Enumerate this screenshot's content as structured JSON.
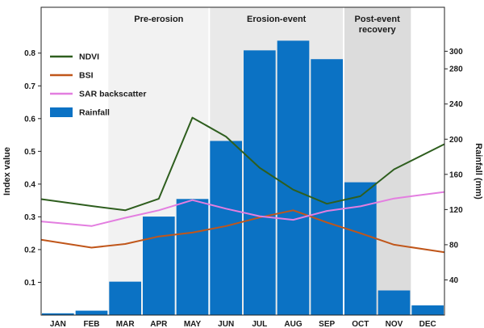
{
  "chart_data": {
    "type": "bar+line",
    "categories": [
      "JAN",
      "FEB",
      "MAR",
      "APR",
      "MAY",
      "JUN",
      "JUL",
      "AUG",
      "SEP",
      "OCT",
      "NOV",
      "DEC"
    ],
    "bar_series": {
      "name": "Rainfall",
      "axis": "right",
      "color": "#0b72c4",
      "values": [
        2,
        5,
        38,
        112,
        132,
        198,
        301,
        312,
        291,
        151,
        28,
        11
      ]
    },
    "line_series": [
      {
        "name": "NDVI",
        "axis": "left",
        "color": "#2e5e1e",
        "values": [
          0.354,
          0.333,
          0.32,
          0.355,
          0.603,
          0.545,
          0.45,
          0.383,
          0.34,
          0.363,
          0.445,
          0.522
        ]
      },
      {
        "name": "BSI",
        "axis": "left",
        "color": "#c0561a",
        "values": [
          0.23,
          0.206,
          0.217,
          0.24,
          0.252,
          0.272,
          0.298,
          0.32,
          0.283,
          0.25,
          0.215,
          0.192
        ]
      },
      {
        "name": "SAR backscatter",
        "axis": "left",
        "color": "#e37ee0",
        "values": [
          0.286,
          0.272,
          0.297,
          0.32,
          0.351,
          0.325,
          0.302,
          0.291,
          0.318,
          0.332,
          0.356,
          0.376
        ]
      }
    ],
    "phases": [
      {
        "label": "Pre-erosion",
        "start": 2,
        "end": 5,
        "color": "#f2f2f2"
      },
      {
        "label": "Erosion-event",
        "start": 5,
        "end": 9,
        "color": "#e9e9e9"
      },
      {
        "label": "Post-event recovery",
        "start": 9,
        "end": 11,
        "color": "#dcdcdc"
      }
    ],
    "y_left": {
      "label": "Index value",
      "min": 0,
      "max": 0.94,
      "ticks": [
        "0.1",
        "0.2",
        "0.3",
        "0.4",
        "0.5",
        "0.6",
        "0.7",
        "0.8"
      ]
    },
    "y_right": {
      "label": "Rainfall (mm)",
      "min": 0,
      "max": 350,
      "ticks": [
        "40",
        "80",
        "120",
        "160",
        "200",
        "240",
        "280",
        "300"
      ]
    },
    "legend": {
      "position": "top-left",
      "items": [
        "NDVI",
        "BSI",
        "SAR backscatter",
        "Rainfall"
      ]
    }
  }
}
